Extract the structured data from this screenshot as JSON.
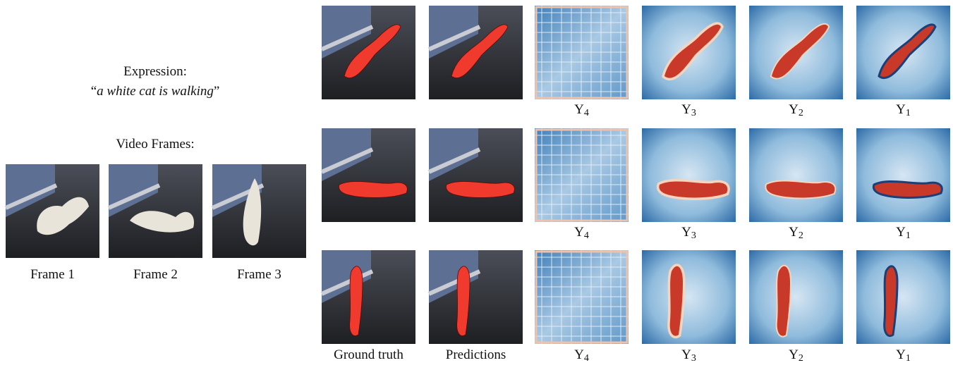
{
  "expression": {
    "label": "Expression:",
    "quote_open": "“",
    "phrase": "a white cat is walking",
    "quote_close": "”"
  },
  "video_frames": {
    "label": "Video Frames:",
    "frames": [
      "Frame 1",
      "Frame 2",
      "Frame 3"
    ]
  },
  "grid": {
    "rows": [
      {
        "map_labels": [
          {
            "base": "Y",
            "sub": "4"
          },
          {
            "base": "Y",
            "sub": "3"
          },
          {
            "base": "Y",
            "sub": "2"
          },
          {
            "base": "Y",
            "sub": "1"
          }
        ]
      },
      {
        "map_labels": [
          {
            "base": "Y",
            "sub": "4"
          },
          {
            "base": "Y",
            "sub": "3"
          },
          {
            "base": "Y",
            "sub": "2"
          },
          {
            "base": "Y",
            "sub": "1"
          }
        ]
      },
      {
        "map_labels": [
          {
            "base": "Y",
            "sub": "4"
          },
          {
            "base": "Y",
            "sub": "3"
          },
          {
            "base": "Y",
            "sub": "2"
          },
          {
            "base": "Y",
            "sub": "1"
          }
        ]
      }
    ],
    "column_captions": [
      "Ground truth",
      "Predictions"
    ]
  }
}
